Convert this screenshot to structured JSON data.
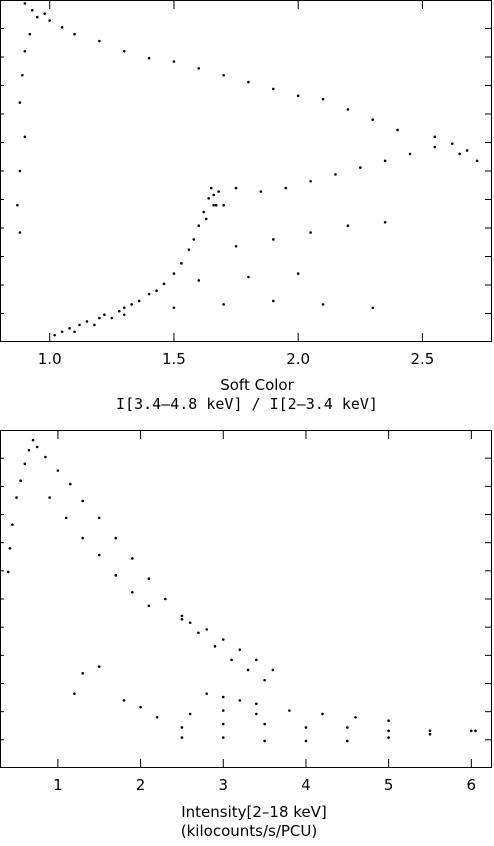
{
  "chart_data": [
    {
      "type": "scatter",
      "title": "",
      "xlabel": "Soft Color",
      "xlabel2": "I[3.4–4.8 keV] / I[2–3.4 keV]",
      "ylabel": "",
      "xlim": [
        0.8,
        2.78
      ],
      "ylim": [
        0.0,
        1.0
      ],
      "x_ticks": [
        1.0,
        1.5,
        2.0,
        2.5
      ],
      "x_tick_labels": [
        "1.0",
        "1.5",
        "2.0",
        "2.5"
      ],
      "grid": false,
      "series": [
        {
          "points": [
            [
              1.02,
              0.02
            ],
            [
              1.05,
              0.03
            ],
            [
              1.08,
              0.04
            ],
            [
              1.1,
              0.03
            ],
            [
              1.12,
              0.05
            ],
            [
              1.15,
              0.06
            ],
            [
              1.18,
              0.05
            ],
            [
              1.2,
              0.07
            ],
            [
              1.22,
              0.08
            ],
            [
              1.25,
              0.07
            ],
            [
              1.28,
              0.09
            ],
            [
              1.3,
              0.1
            ],
            [
              1.33,
              0.11
            ],
            [
              1.36,
              0.12
            ],
            [
              1.4,
              0.14
            ],
            [
              1.43,
              0.15
            ],
            [
              1.46,
              0.17
            ],
            [
              1.5,
              0.2
            ],
            [
              1.53,
              0.23
            ],
            [
              1.56,
              0.27
            ],
            [
              1.58,
              0.3
            ],
            [
              1.6,
              0.34
            ],
            [
              1.62,
              0.38
            ],
            [
              1.64,
              0.42
            ],
            [
              1.65,
              0.45
            ],
            [
              1.66,
              0.43
            ],
            [
              1.67,
              0.4
            ],
            [
              1.68,
              0.44
            ],
            [
              1.66,
              0.4
            ],
            [
              1.63,
              0.36
            ],
            [
              1.7,
              0.4
            ],
            [
              1.75,
              0.45
            ],
            [
              1.85,
              0.44
            ],
            [
              1.95,
              0.45
            ],
            [
              2.05,
              0.47
            ],
            [
              2.15,
              0.49
            ],
            [
              2.25,
              0.51
            ],
            [
              2.35,
              0.53
            ],
            [
              2.45,
              0.55
            ],
            [
              2.55,
              0.57
            ],
            [
              2.62,
              0.58
            ],
            [
              2.68,
              0.56
            ],
            [
              2.72,
              0.53
            ],
            [
              2.65,
              0.55
            ],
            [
              2.55,
              0.6
            ],
            [
              2.4,
              0.62
            ],
            [
              2.3,
              0.65
            ],
            [
              2.2,
              0.68
            ],
            [
              2.1,
              0.71
            ],
            [
              2.0,
              0.72
            ],
            [
              1.9,
              0.74
            ],
            [
              1.8,
              0.76
            ],
            [
              1.7,
              0.78
            ],
            [
              1.6,
              0.8
            ],
            [
              1.5,
              0.82
            ],
            [
              1.4,
              0.83
            ],
            [
              1.3,
              0.85
            ],
            [
              1.2,
              0.88
            ],
            [
              1.1,
              0.9
            ],
            [
              1.05,
              0.92
            ],
            [
              1.0,
              0.94
            ],
            [
              0.98,
              0.96
            ],
            [
              0.95,
              0.95
            ],
            [
              0.93,
              0.97
            ],
            [
              0.9,
              0.99
            ],
            [
              0.92,
              0.9
            ],
            [
              0.9,
              0.85
            ],
            [
              0.89,
              0.78
            ],
            [
              0.88,
              0.7
            ],
            [
              0.9,
              0.6
            ],
            [
              0.88,
              0.5
            ],
            [
              0.87,
              0.4
            ],
            [
              0.88,
              0.32
            ],
            [
              1.3,
              0.08
            ],
            [
              1.5,
              0.1
            ],
            [
              1.7,
              0.11
            ],
            [
              1.9,
              0.12
            ],
            [
              2.1,
              0.11
            ],
            [
              2.3,
              0.1
            ],
            [
              1.6,
              0.18
            ],
            [
              1.8,
              0.19
            ],
            [
              2.0,
              0.2
            ],
            [
              1.75,
              0.28
            ],
            [
              1.9,
              0.3
            ],
            [
              2.05,
              0.32
            ],
            [
              2.2,
              0.34
            ],
            [
              2.35,
              0.35
            ]
          ]
        }
      ]
    },
    {
      "type": "scatter",
      "title": "",
      "xlabel": "Intensity[2–18 keV]",
      "xlabel2": "(kilocounts/s/PCU)",
      "ylabel": "",
      "xlim": [
        0.3,
        6.25
      ],
      "ylim": [
        0.0,
        1.0
      ],
      "x_ticks": [
        1,
        2,
        3,
        4,
        5,
        6
      ],
      "x_tick_labels": [
        "1",
        "2",
        "3",
        "4",
        "5",
        "6"
      ],
      "grid": false,
      "series": [
        {
          "points": [
            [
              0.7,
              0.97
            ],
            [
              0.65,
              0.94
            ],
            [
              0.6,
              0.9
            ],
            [
              0.55,
              0.85
            ],
            [
              0.5,
              0.8
            ],
            [
              0.45,
              0.72
            ],
            [
              0.42,
              0.65
            ],
            [
              0.4,
              0.58
            ],
            [
              0.75,
              0.95
            ],
            [
              0.85,
              0.92
            ],
            [
              1.0,
              0.88
            ],
            [
              1.15,
              0.84
            ],
            [
              1.3,
              0.79
            ],
            [
              1.5,
              0.74
            ],
            [
              1.7,
              0.68
            ],
            [
              1.9,
              0.62
            ],
            [
              2.1,
              0.56
            ],
            [
              2.3,
              0.5
            ],
            [
              2.5,
              0.45
            ],
            [
              2.7,
              0.4
            ],
            [
              2.9,
              0.36
            ],
            [
              3.1,
              0.32
            ],
            [
              3.3,
              0.29
            ],
            [
              3.5,
              0.26
            ],
            [
              0.9,
              0.8
            ],
            [
              1.1,
              0.74
            ],
            [
              1.3,
              0.68
            ],
            [
              1.5,
              0.63
            ],
            [
              1.7,
              0.57
            ],
            [
              1.9,
              0.52
            ],
            [
              2.1,
              0.48
            ],
            [
              2.5,
              0.44
            ],
            [
              2.6,
              0.43
            ],
            [
              2.8,
              0.41
            ],
            [
              3.0,
              0.38
            ],
            [
              3.2,
              0.35
            ],
            [
              3.4,
              0.32
            ],
            [
              3.6,
              0.29
            ],
            [
              2.2,
              0.15
            ],
            [
              2.6,
              0.16
            ],
            [
              3.0,
              0.17
            ],
            [
              3.4,
              0.16
            ],
            [
              3.8,
              0.17
            ],
            [
              4.2,
              0.16
            ],
            [
              4.6,
              0.15
            ],
            [
              5.0,
              0.14
            ],
            [
              2.5,
              0.12
            ],
            [
              3.0,
              0.13
            ],
            [
              3.5,
              0.13
            ],
            [
              4.0,
              0.12
            ],
            [
              4.5,
              0.12
            ],
            [
              5.0,
              0.11
            ],
            [
              5.5,
              0.11
            ],
            [
              6.0,
              0.11
            ],
            [
              2.5,
              0.09
            ],
            [
              3.0,
              0.09
            ],
            [
              3.5,
              0.08
            ],
            [
              4.0,
              0.08
            ],
            [
              4.5,
              0.08
            ],
            [
              5.0,
              0.09
            ],
            [
              5.5,
              0.1
            ],
            [
              6.05,
              0.11
            ],
            [
              2.8,
              0.22
            ],
            [
              3.0,
              0.21
            ],
            [
              3.2,
              0.2
            ],
            [
              3.4,
              0.19
            ],
            [
              1.3,
              0.28
            ],
            [
              1.5,
              0.3
            ],
            [
              1.2,
              0.22
            ],
            [
              1.8,
              0.2
            ],
            [
              2.0,
              0.18
            ]
          ]
        }
      ]
    }
  ]
}
